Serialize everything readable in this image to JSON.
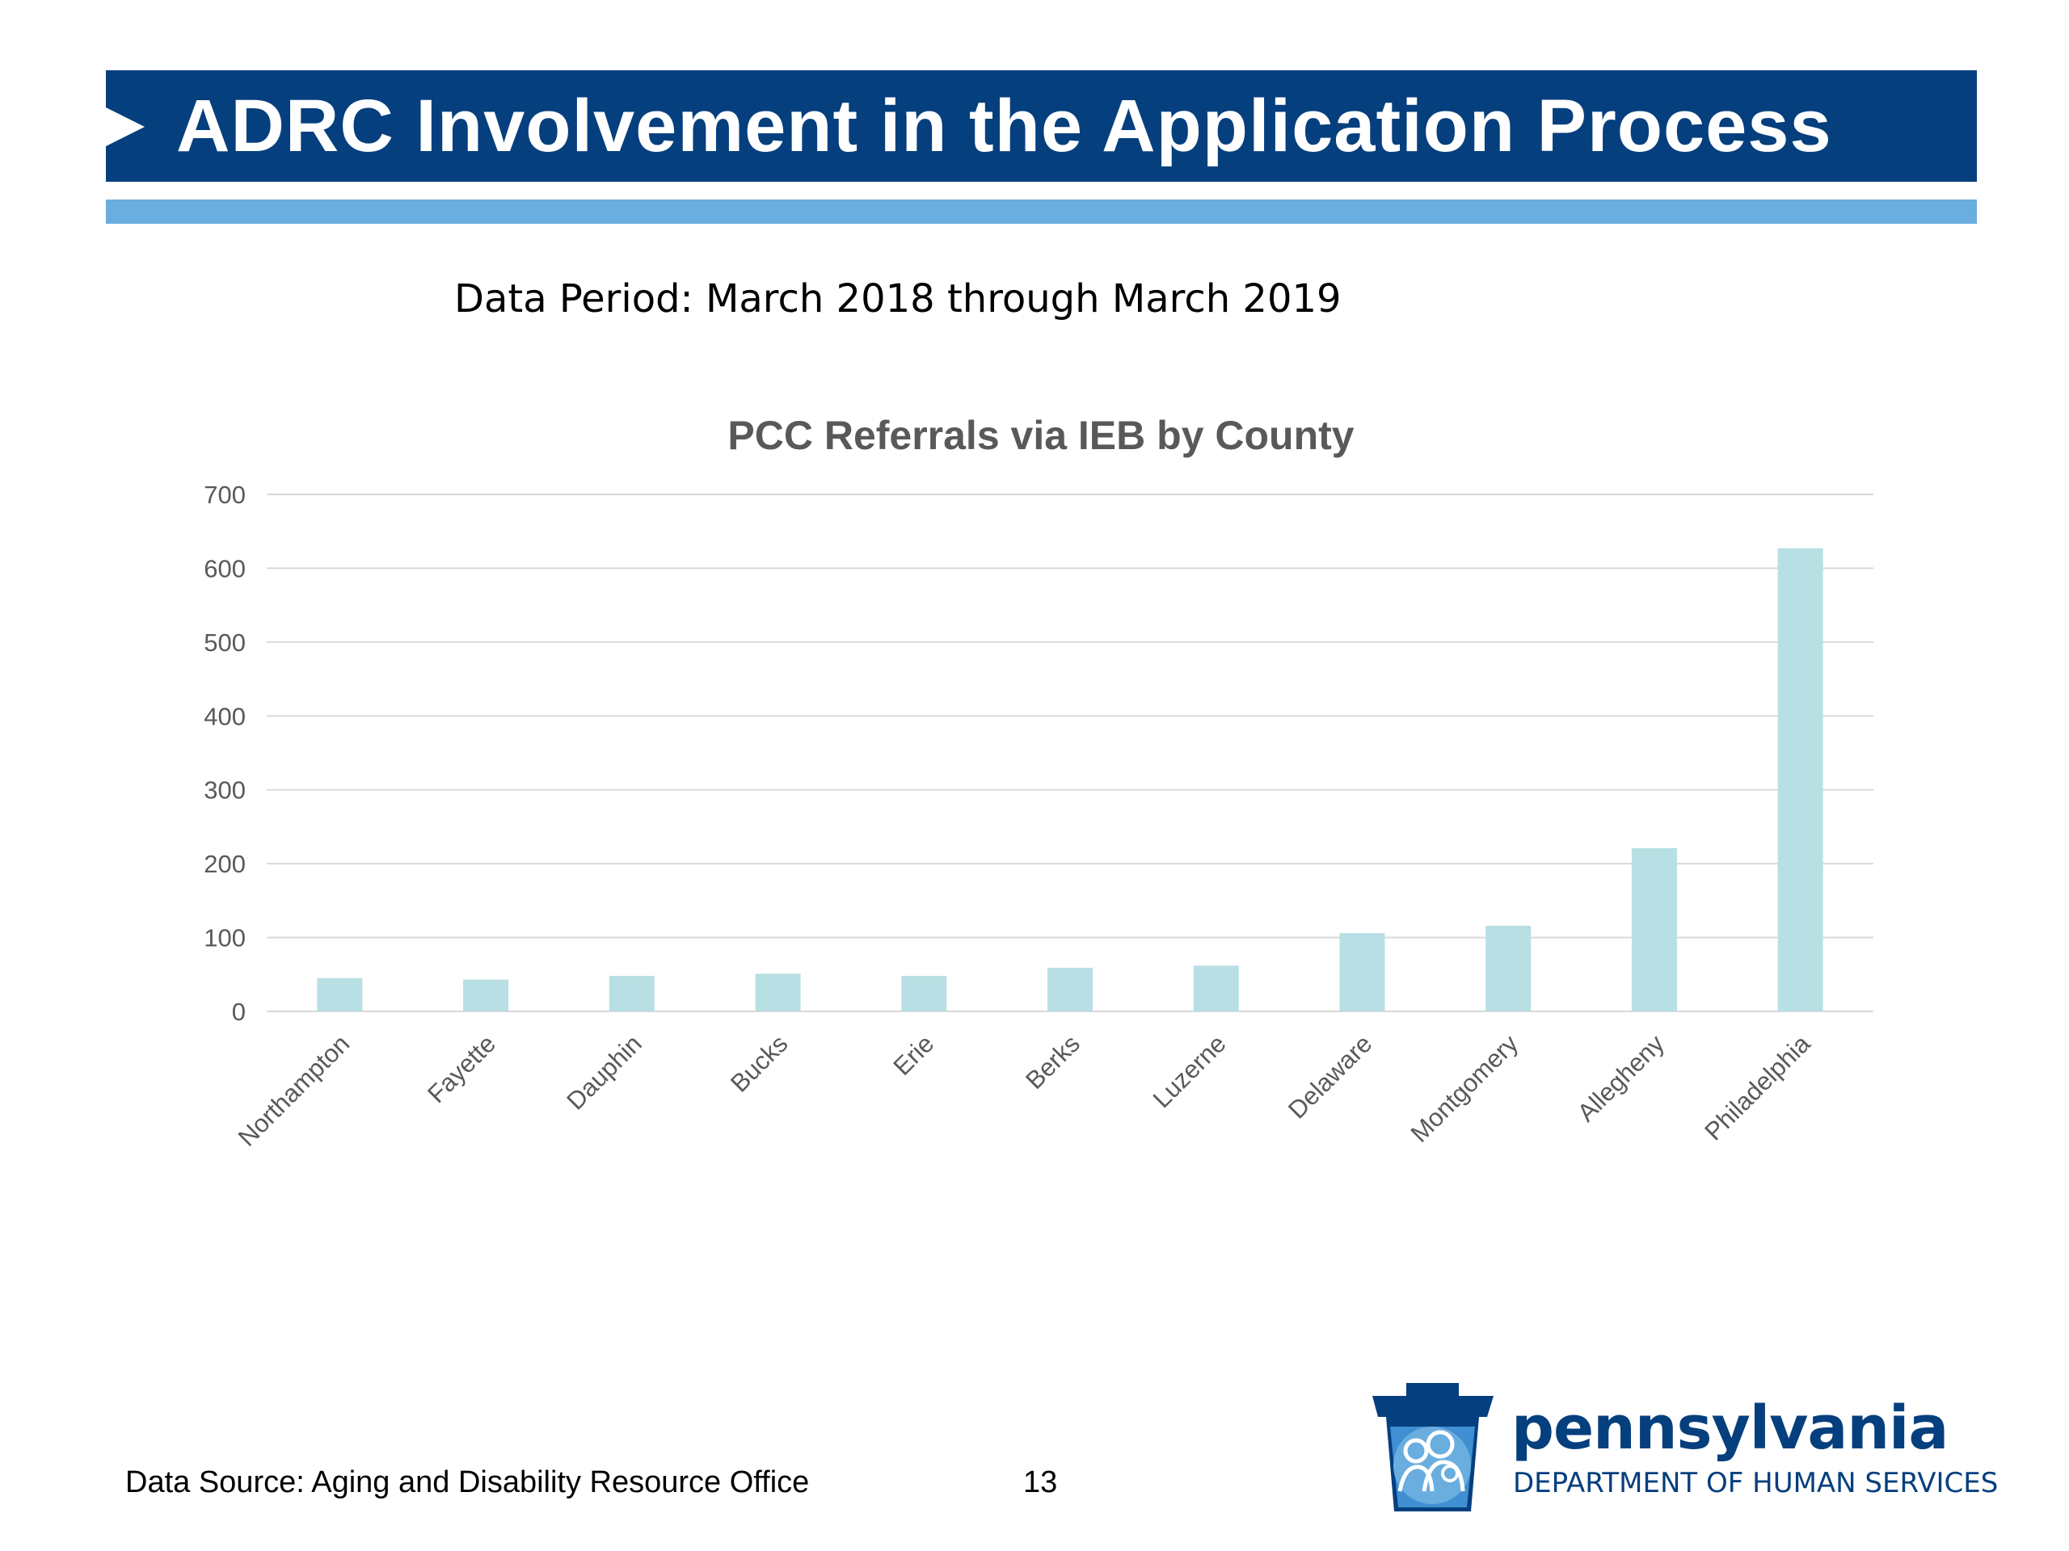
{
  "slide": {
    "title": "ADRC Involvement in the Application Process",
    "data_period": "Data Period: March 2018 through March 2019",
    "footer_source": "Data Source: Aging and Disability Resource Office",
    "page_number": "13",
    "logo": {
      "name": "pennsylvania",
      "department": "DEPARTMENT OF HUMAN SERVICES",
      "icon": "keystone-family-icon"
    }
  },
  "colors": {
    "title_bar": "#063f7e",
    "accent_bar": "#6aaddf",
    "bar_fill": "#b8dfe3",
    "grid": "#d9d9d9",
    "axis_text": "#595959"
  },
  "chart_data": {
    "type": "bar",
    "title": "PCC Referrals via IEB by County",
    "xlabel": "",
    "ylabel": "",
    "categories": [
      "Northampton",
      "Fayette",
      "Dauphin",
      "Bucks",
      "Erie",
      "Berks",
      "Luzerne",
      "Delaware",
      "Montgomery",
      "Allegheny",
      "Philadelphia"
    ],
    "values": [
      45,
      43,
      48,
      51,
      48,
      59,
      62,
      106,
      116,
      221,
      627
    ],
    "ylim": [
      0,
      700
    ],
    "yticks": [
      0,
      100,
      200,
      300,
      400,
      500,
      600,
      700
    ],
    "grid": true,
    "legend": "none"
  }
}
